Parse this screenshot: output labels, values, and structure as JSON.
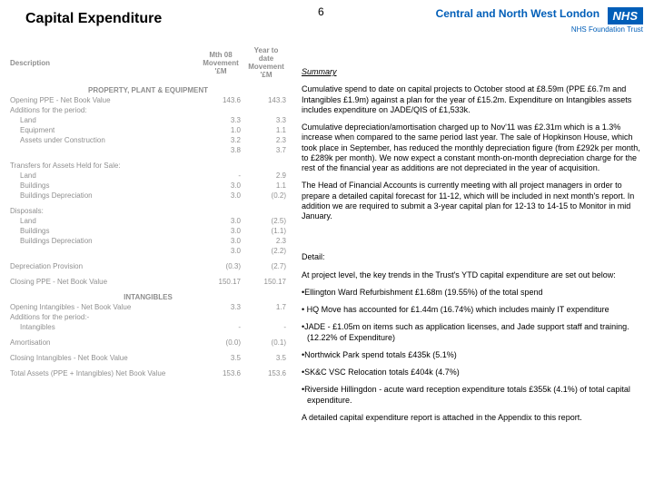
{
  "header": {
    "title": "Capital Expenditure",
    "page_number": "6",
    "trust_name": "Central and North West London",
    "trust_sub": "NHS Foundation Trust",
    "nhs_badge": "NHS"
  },
  "table": {
    "col_headers": {
      "desc": "Description",
      "mth": "Mth 08 Movement '£M",
      "ytd": "Year to date Movement '£M"
    },
    "section1": "PROPERTY, PLANT & EQUIPMENT",
    "rows1": [
      {
        "lbl": "Opening PPE - Net Book Value",
        "mth": "143.6",
        "ytd": "143.3"
      },
      {
        "lbl": "Additions for the period:",
        "mth": "",
        "ytd": ""
      },
      {
        "lbl": "Land",
        "mth": "3.3",
        "ytd": "3.3",
        "indent": true
      },
      {
        "lbl": "Equipment",
        "mth": "1.0",
        "ytd": "1.1",
        "indent": true
      },
      {
        "lbl": "Assets under Construction",
        "mth": "3.2",
        "ytd": "2.3",
        "indent": true
      },
      {
        "lbl": "",
        "mth": "3.8",
        "ytd": "3.7",
        "indent": true
      }
    ],
    "rows2_head": "Transfers for Assets Held for Sale:",
    "rows2": [
      {
        "lbl": "Land",
        "mth": "-",
        "ytd": "2.9",
        "indent": true
      },
      {
        "lbl": "Buildings",
        "mth": "3.0",
        "ytd": "1.1",
        "indent": true
      },
      {
        "lbl": "Buildings Depreciation",
        "mth": "3.0",
        "ytd": "(0.2)",
        "indent": true
      }
    ],
    "rows3_head": "Disposals:",
    "rows3": [
      {
        "lbl": "Land",
        "mth": "3.0",
        "ytd": "(2.5)",
        "indent": true
      },
      {
        "lbl": "Buildings",
        "mth": "3.0",
        "ytd": "(1.1)",
        "indent": true
      },
      {
        "lbl": "Buildings Depreciation",
        "mth": "3.0",
        "ytd": "2.3",
        "indent": true
      },
      {
        "lbl": "",
        "mth": "3.0",
        "ytd": "(2.2)",
        "indent": true
      }
    ],
    "rows4": [
      {
        "lbl": "Depreciation Provision",
        "mth": "(0.3)",
        "ytd": "(2.7)"
      }
    ],
    "rows5": [
      {
        "lbl": "Closing PPE - Net Book Value",
        "mth": "150.17",
        "ytd": "150.17"
      }
    ],
    "section2": "INTANGIBLES",
    "rows6": [
      {
        "lbl": "Opening Intangibles - Net Book Value",
        "mth": "3.3",
        "ytd": "1.7"
      },
      {
        "lbl": "Additions for the period:-",
        "mth": "",
        "ytd": ""
      },
      {
        "lbl": "Intangibles",
        "mth": "-",
        "ytd": "-",
        "indent": true
      }
    ],
    "rows7": [
      {
        "lbl": "Amortisation",
        "mth": "(0.0)",
        "ytd": "(0.1)"
      }
    ],
    "rows8": [
      {
        "lbl": "Closing Intangibles - Net Book Value",
        "mth": "3.5",
        "ytd": "3.5"
      }
    ],
    "rows9": [
      {
        "lbl": "Total Assets (PPE + Intangibles) Net Book Value",
        "mth": "153.6",
        "ytd": "153.6"
      }
    ]
  },
  "summary": {
    "heading": "Summary",
    "p1": "Cumulative spend to date on capital projects to October stood at £8.59m (PPE £6.7m and Intangibles £1.9m) against a plan for the year of £15.2m. Expenditure on Intangibles assets includes expenditure on JADE/QIS of £1,533k.",
    "p2": "Cumulative depreciation/amortisation charged up to Nov'11 was £2.31m which is a 1.3% increase when compared to the same period last year. The sale of Hopkinson House, which took place in September, has reduced the monthly depreciation figure (from £292k per month, to £289k per month). We now expect a constant month-on-month depreciation charge for the rest of the financial year as additions are not depreciated in the year of acquisition.",
    "p3": "The Head of Financial Accounts is currently meeting with all project managers in order to prepare a detailed capital forecast for 11-12, which will be included in next month's report. In addition we are required to submit a 3-year capital plan for 12-13 to 14-15 to Monitor in mid January.",
    "detail_h": "Detail:",
    "d1": "At project level, the key trends in the Trust's YTD capital expenditure are set out below:",
    "b1": "•Ellington Ward Refurbishment £1.68m (19.55%) of the total spend",
    "b2": "• HQ Move has accounted for £1.44m (16.74%) which includes mainly IT expenditure",
    "b3": "•JADE - £1.05m on items such as application licenses, and Jade support staff and training. (12.22% of Expenditure)",
    "b4": "•Northwick Park spend totals £435k (5.1%)",
    "b5": "•SK&C VSC Relocation totals £404k (4.7%)",
    "b6": "•Riverside Hillingdon - acute ward reception expenditure totals £355k (4.1%) of total capital expenditure.",
    "d2": "A detailed capital expenditure report is attached in the Appendix to this report."
  }
}
